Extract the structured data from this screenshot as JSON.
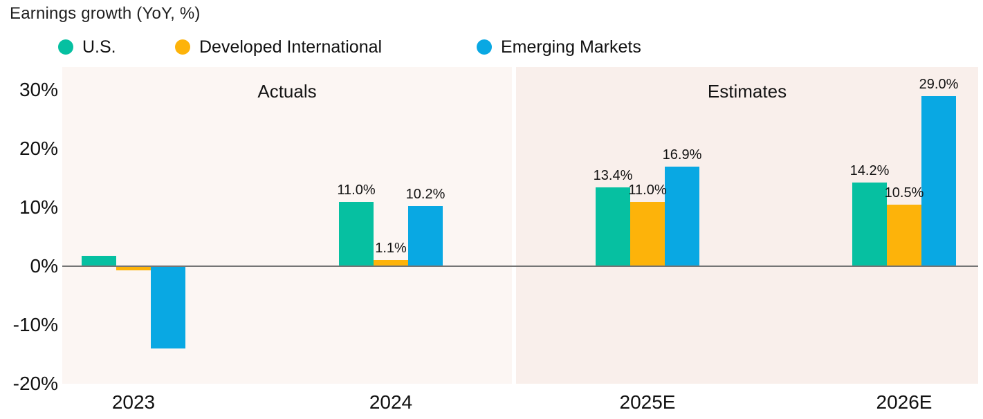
{
  "title": "Earnings growth (YoY, %)",
  "legend": [
    {
      "label": "U.S.",
      "color": "#06C0A1"
    },
    {
      "label": "Developed International",
      "color": "#FDB30A"
    },
    {
      "label": "Emerging Markets",
      "color": "#09A8E3"
    }
  ],
  "colors": {
    "us": "#06C0A1",
    "developed_international": "#FDB30A",
    "emerging_markets": "#09A8E3",
    "actuals_background": "#FCF6F3",
    "estimates_background": "#F9EFEB",
    "zero_line": "#757575",
    "text": "#111111"
  },
  "chart_data": {
    "type": "bar",
    "categories": [
      "2023",
      "2024",
      "2025E",
      "2026E"
    ],
    "series": [
      {
        "name": "U.S.",
        "color": "#06C0A1",
        "values": [
          1.8,
          11.0,
          13.4,
          14.2
        ],
        "labels": [
          "",
          "11.0%",
          "13.4%",
          "14.2%"
        ]
      },
      {
        "name": "Developed International",
        "color": "#FDB30A",
        "values": [
          -0.7,
          1.1,
          11.0,
          10.5
        ],
        "labels": [
          "",
          "1.1%",
          "11.0%",
          "10.5%"
        ]
      },
      {
        "name": "Emerging Markets",
        "color": "#09A8E3",
        "values": [
          -14.0,
          10.2,
          16.9,
          29.0
        ],
        "labels": [
          "",
          "10.2%",
          "16.9%",
          "29.0%"
        ]
      }
    ],
    "sections": [
      {
        "label": "Actuals",
        "categories": [
          "2023",
          "2024"
        ],
        "background": "#FCF6F3"
      },
      {
        "label": "Estimates",
        "categories": [
          "2025E",
          "2026E"
        ],
        "background": "#F9EFEB"
      }
    ],
    "y_ticks": [
      30,
      20,
      10,
      0,
      -10,
      -20
    ],
    "y_tick_labels": [
      "30%",
      "20%",
      "10%",
      "0%",
      "-10%",
      "-20%"
    ],
    "ylim": [
      -20,
      33.9
    ],
    "grid": false,
    "legend_position": "top",
    "title": "Earnings growth (YoY, %)",
    "xlabel": "",
    "ylabel": ""
  }
}
